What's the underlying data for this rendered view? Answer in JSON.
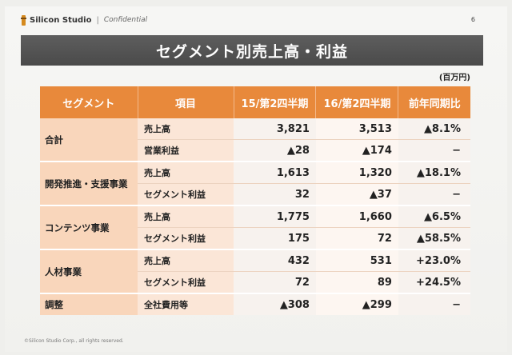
{
  "header": {
    "brand": "Silicon Studio",
    "separator": "|",
    "confidential": "Confidential",
    "page_number": "6"
  },
  "title": "セグメント別売上高・利益",
  "unit": "(百万円)",
  "table": {
    "columns": [
      "セグメント",
      "項目",
      "15/第2四半期",
      "16/第2四半期",
      "前年同期比"
    ],
    "segments": [
      {
        "name": "合計",
        "rows": [
          {
            "item": "売上高",
            "q15": "3,821",
            "q16": "3,513",
            "yoy": "▲8.1%"
          },
          {
            "item": "営業利益",
            "q15": "▲28",
            "q16": "▲174",
            "yoy": "−"
          }
        ]
      },
      {
        "name": "開発推進・支援事業",
        "rows": [
          {
            "item": "売上高",
            "q15": "1,613",
            "q16": "1,320",
            "yoy": "▲18.1%"
          },
          {
            "item": "セグメント利益",
            "q15": "32",
            "q16": "▲37",
            "yoy": "−"
          }
        ]
      },
      {
        "name": "コンテンツ事業",
        "rows": [
          {
            "item": "売上高",
            "q15": "1,775",
            "q16": "1,660",
            "yoy": "▲6.5%"
          },
          {
            "item": "セグメント利益",
            "q15": "175",
            "q16": "72",
            "yoy": "▲58.5%"
          }
        ]
      },
      {
        "name": "人材事業",
        "rows": [
          {
            "item": "売上高",
            "q15": "432",
            "q16": "531",
            "yoy": "+23.0%"
          },
          {
            "item": "セグメント利益",
            "q15": "72",
            "q16": "89",
            "yoy": "+24.5%"
          }
        ]
      },
      {
        "name": "調整",
        "rows": [
          {
            "item": "全社費用等",
            "q15": "▲308",
            "q16": "▲299",
            "yoy": "−"
          }
        ]
      }
    ]
  },
  "footer": "©Silicon Studio Corp., all rights reserved.",
  "colors": {
    "header_orange": "#e8893b",
    "title_bar": "#4f4f4f",
    "segment_cell": "#f9d6bb"
  }
}
